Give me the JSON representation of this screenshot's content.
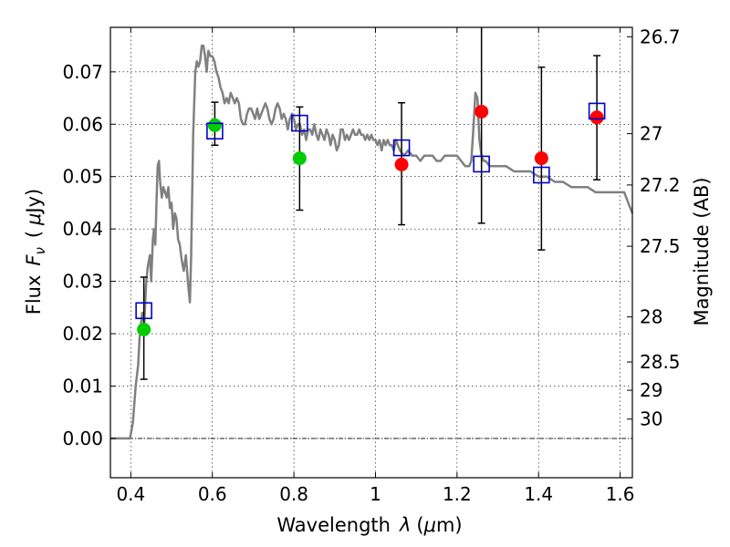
{
  "chart_data": {
    "type": "scatter",
    "title": "",
    "xlabel_prefix": "Wavelength",
    "xlabel_sym": "λ",
    "xlabel_unit_open": "(",
    "xlabel_unit_mu": "μ",
    "xlabel_unit_close": "m)",
    "ylabel_prefix": "Flux",
    "ylabel_sym": "F",
    "ylabel_sub": "ν",
    "ylabel_unit_open": "(",
    "ylabel_unit_mu": "μ",
    "ylabel_unit_close": "Jy)",
    "y2label": "Magnitude (AB)",
    "xlim": [
      0.35,
      1.63
    ],
    "ylim": [
      -0.0075,
      0.0785
    ],
    "x_ticks": [
      0.4,
      0.6,
      0.8,
      1.0,
      1.2,
      1.4,
      1.6
    ],
    "x_tick_labels": [
      "0.4",
      "0.6",
      "0.8",
      "1",
      "1.2",
      "1.4",
      "1.6"
    ],
    "y_ticks": [
      0.0,
      0.01,
      0.02,
      0.03,
      0.04,
      0.05,
      0.06,
      0.07
    ],
    "y_tick_labels": [
      "0.00",
      "0.01",
      "0.02",
      "0.03",
      "0.04",
      "0.05",
      "0.06",
      "0.07"
    ],
    "y2_ticks": [
      {
        "label": "26.7",
        "flux": 0.0767
      },
      {
        "label": "27",
        "flux": 0.0582
      },
      {
        "label": "27.2",
        "flux": 0.0484
      },
      {
        "label": "27.5",
        "flux": 0.0367
      },
      {
        "label": "28",
        "flux": 0.0232
      },
      {
        "label": "28.5",
        "flux": 0.0146
      },
      {
        "label": "29",
        "flux": 0.0092
      },
      {
        "label": "30",
        "flux": 0.0037
      }
    ],
    "grid": true,
    "zero_line": true,
    "colors": {
      "model": "#808080",
      "detection": "#00cc00",
      "upper": "#ff0000",
      "model_flux": "#0000cc",
      "errorbar": "#000000"
    },
    "model_spectrum": [
      [
        0.35,
        0.0
      ],
      [
        0.398,
        0.0
      ],
      [
        0.405,
        0.003
      ],
      [
        0.412,
        0.01
      ],
      [
        0.418,
        0.014
      ],
      [
        0.422,
        0.02
      ],
      [
        0.428,
        0.024
      ],
      [
        0.433,
        0.022
      ],
      [
        0.438,
        0.03
      ],
      [
        0.442,
        0.033
      ],
      [
        0.447,
        0.035
      ],
      [
        0.45,
        0.03
      ],
      [
        0.454,
        0.038
      ],
      [
        0.457,
        0.04
      ],
      [
        0.46,
        0.037
      ],
      [
        0.463,
        0.045
      ],
      [
        0.466,
        0.052
      ],
      [
        0.469,
        0.053
      ],
      [
        0.472,
        0.049
      ],
      [
        0.476,
        0.046
      ],
      [
        0.48,
        0.048
      ],
      [
        0.484,
        0.047
      ],
      [
        0.488,
        0.046
      ],
      [
        0.492,
        0.048
      ],
      [
        0.496,
        0.044
      ],
      [
        0.5,
        0.045
      ],
      [
        0.504,
        0.04
      ],
      [
        0.508,
        0.043
      ],
      [
        0.512,
        0.042
      ],
      [
        0.516,
        0.038
      ],
      [
        0.52,
        0.037
      ],
      [
        0.525,
        0.034
      ],
      [
        0.53,
        0.032
      ],
      [
        0.535,
        0.035
      ],
      [
        0.54,
        0.03
      ],
      [
        0.545,
        0.026
      ],
      [
        0.548,
        0.035
      ],
      [
        0.553,
        0.058
      ],
      [
        0.558,
        0.07
      ],
      [
        0.562,
        0.072
      ],
      [
        0.566,
        0.071
      ],
      [
        0.57,
        0.072
      ],
      [
        0.574,
        0.075
      ],
      [
        0.578,
        0.075
      ],
      [
        0.582,
        0.073
      ],
      [
        0.586,
        0.07
      ],
      [
        0.59,
        0.074
      ],
      [
        0.595,
        0.073
      ],
      [
        0.6,
        0.073
      ],
      [
        0.605,
        0.072
      ],
      [
        0.61,
        0.07
      ],
      [
        0.615,
        0.069
      ],
      [
        0.62,
        0.067
      ],
      [
        0.625,
        0.066
      ],
      [
        0.63,
        0.064
      ],
      [
        0.635,
        0.065
      ],
      [
        0.64,
        0.064
      ],
      [
        0.645,
        0.066
      ],
      [
        0.65,
        0.065
      ],
      [
        0.655,
        0.064
      ],
      [
        0.66,
        0.065
      ],
      [
        0.665,
        0.064
      ],
      [
        0.67,
        0.061
      ],
      [
        0.675,
        0.06
      ],
      [
        0.68,
        0.06
      ],
      [
        0.685,
        0.062
      ],
      [
        0.69,
        0.063
      ],
      [
        0.695,
        0.063
      ],
      [
        0.7,
        0.062
      ],
      [
        0.705,
        0.061
      ],
      [
        0.71,
        0.063
      ],
      [
        0.715,
        0.061
      ],
      [
        0.72,
        0.062
      ],
      [
        0.725,
        0.063
      ],
      [
        0.73,
        0.064
      ],
      [
        0.735,
        0.063
      ],
      [
        0.74,
        0.061
      ],
      [
        0.745,
        0.06
      ],
      [
        0.75,
        0.061
      ],
      [
        0.755,
        0.063
      ],
      [
        0.76,
        0.064
      ],
      [
        0.765,
        0.063
      ],
      [
        0.77,
        0.061
      ],
      [
        0.775,
        0.062
      ],
      [
        0.78,
        0.061
      ],
      [
        0.785,
        0.059
      ],
      [
        0.79,
        0.061
      ],
      [
        0.795,
        0.062
      ],
      [
        0.8,
        0.061
      ],
      [
        0.805,
        0.059
      ],
      [
        0.81,
        0.06
      ],
      [
        0.815,
        0.06
      ],
      [
        0.82,
        0.058
      ],
      [
        0.825,
        0.059
      ],
      [
        0.83,
        0.057
      ],
      [
        0.835,
        0.059
      ],
      [
        0.84,
        0.059
      ],
      [
        0.845,
        0.058
      ],
      [
        0.85,
        0.06
      ],
      [
        0.855,
        0.058
      ],
      [
        0.86,
        0.057
      ],
      [
        0.865,
        0.059
      ],
      [
        0.87,
        0.058
      ],
      [
        0.875,
        0.057
      ],
      [
        0.88,
        0.059
      ],
      [
        0.885,
        0.058
      ],
      [
        0.89,
        0.056
      ],
      [
        0.895,
        0.058
      ],
      [
        0.9,
        0.057
      ],
      [
        0.905,
        0.055
      ],
      [
        0.91,
        0.056
      ],
      [
        0.915,
        0.059
      ],
      [
        0.92,
        0.059
      ],
      [
        0.925,
        0.057
      ],
      [
        0.93,
        0.058
      ],
      [
        0.935,
        0.057
      ],
      [
        0.94,
        0.058
      ],
      [
        0.945,
        0.059
      ],
      [
        0.95,
        0.058
      ],
      [
        0.955,
        0.058
      ],
      [
        0.96,
        0.059
      ],
      [
        0.965,
        0.058
      ],
      [
        0.97,
        0.058
      ],
      [
        0.975,
        0.057
      ],
      [
        0.98,
        0.058
      ],
      [
        0.985,
        0.057
      ],
      [
        0.99,
        0.058
      ],
      [
        0.995,
        0.057
      ],
      [
        1.0,
        0.057
      ],
      [
        1.005,
        0.056
      ],
      [
        1.01,
        0.057
      ],
      [
        1.015,
        0.055
      ],
      [
        1.02,
        0.057
      ],
      [
        1.025,
        0.056
      ],
      [
        1.03,
        0.057
      ],
      [
        1.035,
        0.056
      ],
      [
        1.04,
        0.056
      ],
      [
        1.045,
        0.055
      ],
      [
        1.05,
        0.057
      ],
      [
        1.055,
        0.056
      ],
      [
        1.06,
        0.055
      ],
      [
        1.07,
        0.054
      ],
      [
        1.08,
        0.055
      ],
      [
        1.09,
        0.054
      ],
      [
        1.1,
        0.054
      ],
      [
        1.11,
        0.053
      ],
      [
        1.12,
        0.054
      ],
      [
        1.13,
        0.054
      ],
      [
        1.14,
        0.054
      ],
      [
        1.15,
        0.053
      ],
      [
        1.16,
        0.053
      ],
      [
        1.17,
        0.054
      ],
      [
        1.18,
        0.054
      ],
      [
        1.19,
        0.054
      ],
      [
        1.2,
        0.054
      ],
      [
        1.21,
        0.053
      ],
      [
        1.22,
        0.052
      ],
      [
        1.225,
        0.052
      ],
      [
        1.23,
        0.052
      ],
      [
        1.235,
        0.053
      ],
      [
        1.24,
        0.059
      ],
      [
        1.245,
        0.066
      ],
      [
        1.25,
        0.065
      ],
      [
        1.255,
        0.057
      ],
      [
        1.26,
        0.054
      ],
      [
        1.265,
        0.053
      ],
      [
        1.27,
        0.053
      ],
      [
        1.28,
        0.052
      ],
      [
        1.3,
        0.052
      ],
      [
        1.32,
        0.052
      ],
      [
        1.34,
        0.051
      ],
      [
        1.36,
        0.051
      ],
      [
        1.38,
        0.051
      ],
      [
        1.4,
        0.05
      ],
      [
        1.42,
        0.05
      ],
      [
        1.44,
        0.049
      ],
      [
        1.46,
        0.049
      ],
      [
        1.48,
        0.048
      ],
      [
        1.5,
        0.048
      ],
      [
        1.52,
        0.048
      ],
      [
        1.54,
        0.047
      ],
      [
        1.56,
        0.047
      ],
      [
        1.58,
        0.047
      ],
      [
        1.6,
        0.047
      ],
      [
        1.61,
        0.047
      ],
      [
        1.62,
        0.045
      ],
      [
        1.63,
        0.043
      ]
    ],
    "series": [
      {
        "marker": "circle",
        "color": "#00cc00",
        "points": [
          {
            "x": 0.432,
            "y": 0.0208
          },
          {
            "x": 0.606,
            "y": 0.0598
          },
          {
            "x": 0.814,
            "y": 0.0535
          }
        ]
      },
      {
        "marker": "circle",
        "color": "#ff0000",
        "points": [
          {
            "x": 1.064,
            "y": 0.0523
          },
          {
            "x": 1.26,
            "y": 0.0624
          },
          {
            "x": 1.407,
            "y": 0.0535
          },
          {
            "x": 1.543,
            "y": 0.0613
          }
        ]
      },
      {
        "marker": "square",
        "color": "#0000cc",
        "points": [
          {
            "x": 0.432,
            "y": 0.0244
          },
          {
            "x": 0.606,
            "y": 0.0587
          },
          {
            "x": 0.814,
            "y": 0.0602
          },
          {
            "x": 1.064,
            "y": 0.0555
          },
          {
            "x": 1.26,
            "y": 0.0524
          },
          {
            "x": 1.407,
            "y": 0.0503
          },
          {
            "x": 1.543,
            "y": 0.0625
          }
        ]
      }
    ],
    "errorbars": [
      {
        "x": 0.432,
        "low": 0.0113,
        "high": 0.0308
      },
      {
        "x": 0.606,
        "low": 0.056,
        "high": 0.0642
      },
      {
        "x": 0.814,
        "low": 0.0436,
        "high": 0.0633
      },
      {
        "x": 1.064,
        "low": 0.0408,
        "high": 0.0641
      },
      {
        "x": 1.26,
        "low": 0.0411,
        "high": 0.0785
      },
      {
        "x": 1.407,
        "low": 0.036,
        "high": 0.0709
      },
      {
        "x": 1.543,
        "low": 0.0494,
        "high": 0.0731
      }
    ]
  }
}
